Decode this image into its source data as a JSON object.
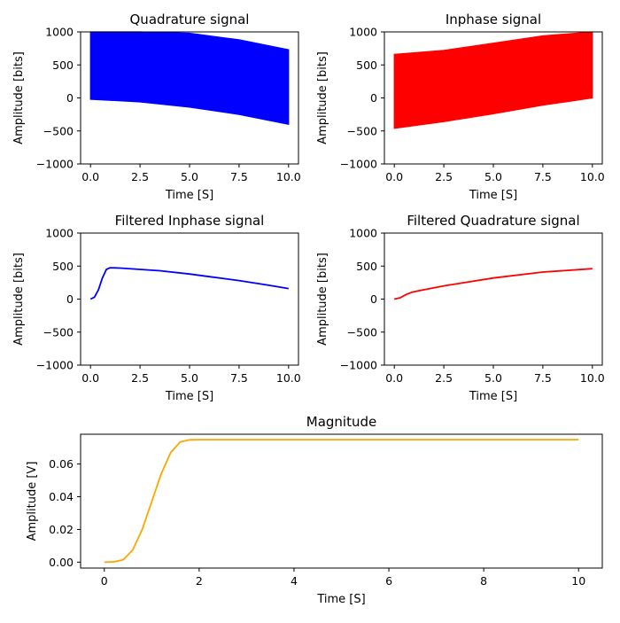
{
  "chart_data": [
    {
      "type": "area",
      "title": "Quadrature signal",
      "xlabel": "Time [S]",
      "ylabel": "Amplitude [bits]",
      "xlim": [
        -0.5,
        10.5
      ],
      "ylim": [
        -1000,
        1000
      ],
      "xticks": [
        "0.0",
        "2.5",
        "5.0",
        "7.5",
        "10.0"
      ],
      "yticks": [
        "−1000",
        "−500",
        "0",
        "500",
        "1000"
      ],
      "color": "#0000ff",
      "band": {
        "x": [
          0,
          2.5,
          5,
          7.5,
          10
        ],
        "upper": [
          1000,
          1000,
          980,
          880,
          730
        ],
        "lower": [
          -20,
          -60,
          -140,
          -250,
          -400
        ]
      }
    },
    {
      "type": "area",
      "title": "Inphase signal",
      "xlabel": "Time [S]",
      "ylabel": "Amplitude [bits]",
      "xlim": [
        -0.5,
        10.5
      ],
      "ylim": [
        -1000,
        1000
      ],
      "xticks": [
        "0.0",
        "2.5",
        "5.0",
        "7.5",
        "10.0"
      ],
      "yticks": [
        "−1000",
        "−500",
        "0",
        "500",
        "1000"
      ],
      "color": "#ff0000",
      "band": {
        "x": [
          0,
          2.5,
          5,
          7.5,
          10
        ],
        "upper": [
          660,
          720,
          830,
          940,
          1000
        ],
        "lower": [
          -460,
          -360,
          -240,
          -110,
          0
        ]
      }
    },
    {
      "type": "line",
      "title": "Filtered Inphase signal",
      "xlabel": "Time [S]",
      "ylabel": "Amplitude [bits]",
      "xlim": [
        -0.5,
        10.5
      ],
      "ylim": [
        -1000,
        1000
      ],
      "xticks": [
        "0.0",
        "2.5",
        "5.0",
        "7.5",
        "10.0"
      ],
      "yticks": [
        "−1000",
        "−500",
        "0",
        "500",
        "1000"
      ],
      "color": "#0000ff",
      "series": [
        {
          "x": [
            0,
            0.2,
            0.4,
            0.6,
            0.8,
            1.0,
            1.5,
            2.5,
            3.5,
            5,
            6,
            7.5,
            9,
            10
          ],
          "values": [
            0,
            30,
            140,
            320,
            450,
            475,
            470,
            450,
            430,
            380,
            340,
            280,
            210,
            160
          ]
        }
      ]
    },
    {
      "type": "line",
      "title": "Filtered Quadrature signal",
      "xlabel": "Time [S]",
      "ylabel": "Amplitude [bits]",
      "xlim": [
        -0.5,
        10.5
      ],
      "ylim": [
        -1000,
        1000
      ],
      "xticks": [
        "0.0",
        "2.5",
        "5.0",
        "7.5",
        "10.0"
      ],
      "yticks": [
        "−1000",
        "−500",
        "0",
        "500",
        "1000"
      ],
      "color": "#ff0000",
      "series": [
        {
          "x": [
            0,
            0.3,
            0.6,
            0.9,
            1.2,
            2.5,
            5,
            7.5,
            10
          ],
          "values": [
            0,
            20,
            70,
            105,
            125,
            200,
            320,
            410,
            460
          ]
        }
      ]
    },
    {
      "type": "line",
      "title": "Magnitude",
      "xlabel": "Time [S]",
      "ylabel": "Amplitude [V]",
      "xlim": [
        -0.5,
        10.5
      ],
      "ylim": [
        -0.0036,
        0.0782
      ],
      "xticks": [
        "0",
        "2",
        "4",
        "6",
        "8",
        "10"
      ],
      "yticks": [
        "0.00",
        "0.02",
        "0.04",
        "0.06"
      ],
      "color": "#ffa500",
      "series": [
        {
          "x": [
            0,
            0.2,
            0.4,
            0.6,
            0.8,
            1.0,
            1.2,
            1.4,
            1.6,
            1.8,
            2.0,
            4,
            6,
            8,
            10
          ],
          "values": [
            0,
            0.0002,
            0.0015,
            0.0075,
            0.02,
            0.037,
            0.054,
            0.067,
            0.0735,
            0.0748,
            0.0749,
            0.0749,
            0.0749,
            0.0749,
            0.0749
          ]
        }
      ]
    }
  ]
}
